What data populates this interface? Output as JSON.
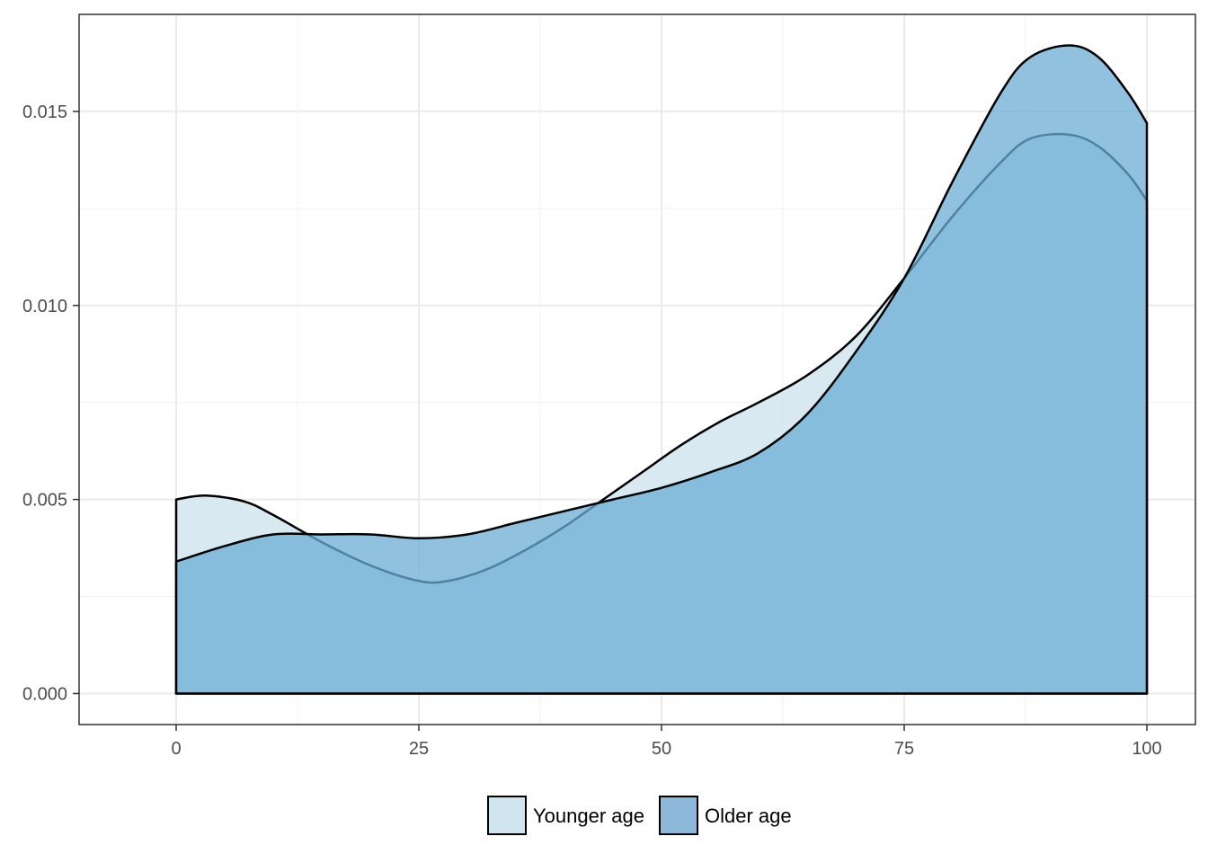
{
  "chart_data": {
    "type": "area",
    "title": "",
    "xlabel": "",
    "ylabel": "",
    "xlim": [
      -10,
      105
    ],
    "ylim": [
      -0.0008,
      0.0175
    ],
    "x_ticks": [
      0,
      25,
      50,
      75,
      100
    ],
    "x_tick_labels": [
      "0",
      "25",
      "50",
      "75",
      "100"
    ],
    "y_ticks": [
      0.0,
      0.005,
      0.01,
      0.015
    ],
    "y_tick_labels": [
      "0.000",
      "0.005",
      "0.010",
      "0.015"
    ],
    "grid": true,
    "legend_position": "bottom",
    "series": [
      {
        "name": "Younger age",
        "color": "#d1e5f0",
        "x": [
          0,
          3,
          7,
          10,
          15,
          20,
          25,
          28,
          32,
          36,
          40,
          44,
          48,
          52,
          56,
          60,
          65,
          70,
          75,
          80,
          85,
          88,
          92,
          95,
          98,
          100
        ],
        "values": [
          0.005,
          0.0051,
          0.00495,
          0.0046,
          0.0039,
          0.0033,
          0.0029,
          0.0029,
          0.0032,
          0.0037,
          0.0043,
          0.005,
          0.0057,
          0.0064,
          0.007,
          0.0075,
          0.0082,
          0.0092,
          0.0107,
          0.0123,
          0.0137,
          0.0143,
          0.0144,
          0.0141,
          0.0134,
          0.0127
        ]
      },
      {
        "name": "Older age",
        "color": "#6baed6",
        "x": [
          0,
          5,
          10,
          15,
          20,
          25,
          30,
          35,
          40,
          45,
          50,
          55,
          60,
          65,
          70,
          75,
          80,
          85,
          88,
          92,
          95,
          98,
          100
        ],
        "values": [
          0.0034,
          0.0038,
          0.0041,
          0.0041,
          0.0041,
          0.004,
          0.0041,
          0.0044,
          0.0047,
          0.005,
          0.0053,
          0.0057,
          0.0062,
          0.0072,
          0.0088,
          0.0107,
          0.0132,
          0.0155,
          0.0164,
          0.0167,
          0.0164,
          0.0155,
          0.0147
        ]
      }
    ]
  },
  "legend": {
    "items": [
      {
        "label": "Younger age",
        "color": "#d1e5f0"
      },
      {
        "label": "Older age",
        "color": "#8db8da"
      }
    ]
  }
}
